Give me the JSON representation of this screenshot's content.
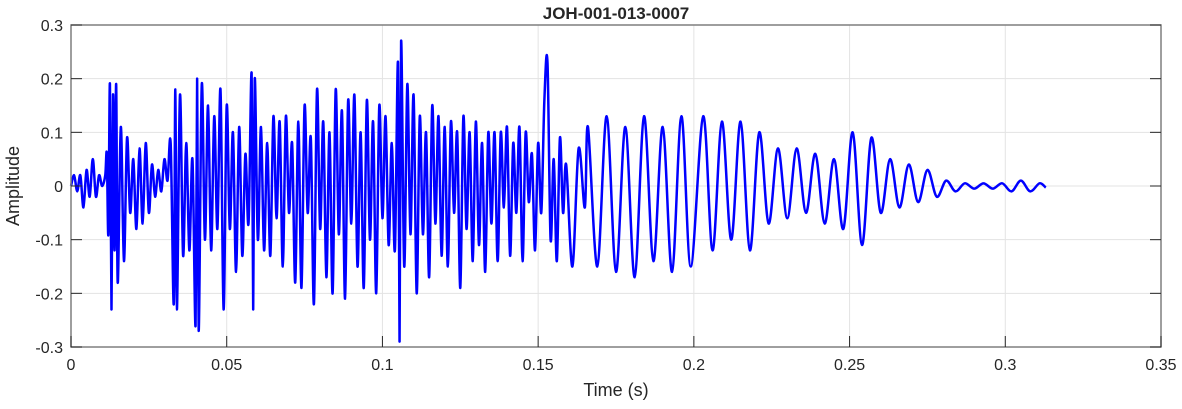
{
  "chart_data": {
    "type": "line",
    "title": "JOH-001-013-0007",
    "xlabel": "Time (s)",
    "ylabel": "Amplitude",
    "xlim": [
      0,
      0.35
    ],
    "ylim": [
      -0.3,
      0.3
    ],
    "xticks": [
      "0",
      "0.05",
      "0.1",
      "0.15",
      "0.2",
      "0.25",
      "0.3",
      "0.35"
    ],
    "yticks": [
      "-0.3",
      "-0.2",
      "-0.1",
      "0",
      "0.1",
      "0.2",
      "0.3"
    ],
    "grid": true,
    "series_color": "#0000ff",
    "series": [
      {
        "x": [
          0,
          0.001,
          0.002,
          0.003,
          0.004,
          0.005,
          0.006,
          0.007,
          0.008,
          0.009,
          0.01,
          0.011,
          0.0115,
          0.012,
          0.0125,
          0.013,
          0.0135,
          0.014,
          0.0145,
          0.015,
          0.016,
          0.017,
          0.018,
          0.019,
          0.02,
          0.021,
          0.022,
          0.023,
          0.024,
          0.025,
          0.026,
          0.027,
          0.028,
          0.029,
          0.03,
          0.031,
          0.032,
          0.033,
          0.0335,
          0.034,
          0.035,
          0.036,
          0.037,
          0.038,
          0.039,
          0.04,
          0.0405,
          0.041,
          0.042,
          0.043,
          0.044,
          0.045,
          0.046,
          0.047,
          0.048,
          0.049,
          0.05,
          0.051,
          0.052,
          0.053,
          0.054,
          0.055,
          0.056,
          0.057,
          0.058,
          0.0585,
          0.059,
          0.06,
          0.061,
          0.062,
          0.063,
          0.064,
          0.065,
          0.066,
          0.067,
          0.068,
          0.069,
          0.07,
          0.071,
          0.072,
          0.073,
          0.074,
          0.075,
          0.076,
          0.077,
          0.078,
          0.079,
          0.08,
          0.081,
          0.082,
          0.083,
          0.084,
          0.085,
          0.086,
          0.087,
          0.088,
          0.089,
          0.09,
          0.091,
          0.092,
          0.093,
          0.094,
          0.095,
          0.096,
          0.097,
          0.098,
          0.099,
          0.1,
          0.101,
          0.102,
          0.103,
          0.104,
          0.105,
          0.1055,
          0.106,
          0.107,
          0.108,
          0.109,
          0.11,
          0.111,
          0.112,
          0.113,
          0.114,
          0.115,
          0.116,
          0.117,
          0.118,
          0.119,
          0.12,
          0.121,
          0.122,
          0.123,
          0.124,
          0.125,
          0.126,
          0.127,
          0.128,
          0.129,
          0.13,
          0.131,
          0.132,
          0.133,
          0.134,
          0.135,
          0.136,
          0.137,
          0.138,
          0.139,
          0.14,
          0.141,
          0.142,
          0.143,
          0.144,
          0.145,
          0.146,
          0.147,
          0.148,
          0.149,
          0.15,
          0.151,
          0.152,
          0.153,
          0.154,
          0.155,
          0.156,
          0.157,
          0.158,
          0.159,
          0.161,
          0.163,
          0.165,
          0.166,
          0.169,
          0.172,
          0.175,
          0.178,
          0.181,
          0.184,
          0.187,
          0.19,
          0.193,
          0.196,
          0.199,
          0.203,
          0.206,
          0.209,
          0.212,
          0.215,
          0.218,
          0.221,
          0.224,
          0.227,
          0.23,
          0.233,
          0.236,
          0.239,
          0.242,
          0.245,
          0.248,
          0.251,
          0.254,
          0.257,
          0.26,
          0.263,
          0.266,
          0.269,
          0.272,
          0.275,
          0.278,
          0.281,
          0.284,
          0.287,
          0.29,
          0.293,
          0.296,
          0.299,
          0.302,
          0.305,
          0.308,
          0.311,
          0.313
        ],
        "y": [
          0,
          0.02,
          -0.01,
          0.02,
          -0.04,
          0.03,
          -0.02,
          0.05,
          -0.02,
          0.02,
          0,
          0.02,
          0.06,
          -0.09,
          0.19,
          -0.23,
          0.17,
          -0.12,
          0.19,
          -0.18,
          0.11,
          -0.14,
          0.09,
          -0.05,
          0.05,
          -0.08,
          0.07,
          -0.07,
          0.08,
          -0.05,
          0.04,
          -0.02,
          0.03,
          -0.01,
          0.05,
          0.01,
          0.08,
          -0.22,
          0.18,
          -0.23,
          0.17,
          -0.13,
          0.08,
          -0.12,
          0.05,
          -0.26,
          0.2,
          -0.27,
          0.19,
          -0.1,
          0.15,
          -0.12,
          0.13,
          -0.08,
          0.18,
          -0.23,
          0.15,
          -0.08,
          0.1,
          -0.16,
          0.11,
          -0.13,
          0.06,
          -0.07,
          0.21,
          -0.23,
          0.2,
          -0.1,
          0.11,
          -0.12,
          0.08,
          -0.13,
          0.13,
          -0.06,
          0.12,
          -0.15,
          0.13,
          -0.05,
          0.08,
          -0.18,
          0.12,
          -0.19,
          0.15,
          -0.05,
          0.09,
          -0.22,
          0.18,
          -0.08,
          0.12,
          -0.17,
          0.1,
          -0.2,
          0.18,
          -0.09,
          0.14,
          -0.21,
          0.16,
          -0.07,
          0.17,
          -0.15,
          0.1,
          -0.19,
          0.16,
          -0.1,
          0.12,
          -0.2,
          0.15,
          -0.06,
          0.13,
          -0.11,
          0.08,
          -0.12,
          0.23,
          -0.29,
          0.27,
          -0.15,
          0.19,
          -0.09,
          0.17,
          -0.2,
          0.13,
          -0.09,
          0.1,
          -0.17,
          0.15,
          -0.07,
          0.13,
          -0.13,
          0.11,
          -0.15,
          0.12,
          -0.05,
          0.1,
          -0.19,
          0.13,
          -0.08,
          0.1,
          -0.14,
          0.12,
          -0.11,
          0.08,
          -0.16,
          0.1,
          -0.07,
          0.1,
          -0.14,
          0.1,
          -0.04,
          0.11,
          -0.13,
          0.08,
          -0.05,
          0.11,
          -0.14,
          0.1,
          -0.03,
          0.06,
          -0.12,
          0.08,
          -0.05,
          0.16,
          0.23,
          -0.1,
          0.05,
          -0.14,
          0.09,
          -0.05,
          0.04,
          -0.15,
          0.07,
          -0.04,
          0.11,
          -0.15,
          0.13,
          -0.16,
          0.11,
          -0.17,
          0.13,
          -0.14,
          0.11,
          -0.16,
          0.13,
          -0.15,
          0.13,
          -0.12,
          0.12,
          -0.1,
          0.12,
          -0.12,
          0.1,
          -0.07,
          0.07,
          -0.06,
          0.07,
          -0.05,
          0.06,
          -0.07,
          0.05,
          -0.08,
          0.1,
          -0.11,
          0.09,
          -0.05,
          0.05,
          -0.04,
          0.04,
          -0.03,
          0.03,
          -0.02,
          0.01,
          -0.01,
          0.005,
          -0.005,
          0.005,
          -0.005,
          0.005,
          -0.01,
          0.01,
          -0.01,
          0.005,
          -0.003
        ]
      }
    ]
  }
}
